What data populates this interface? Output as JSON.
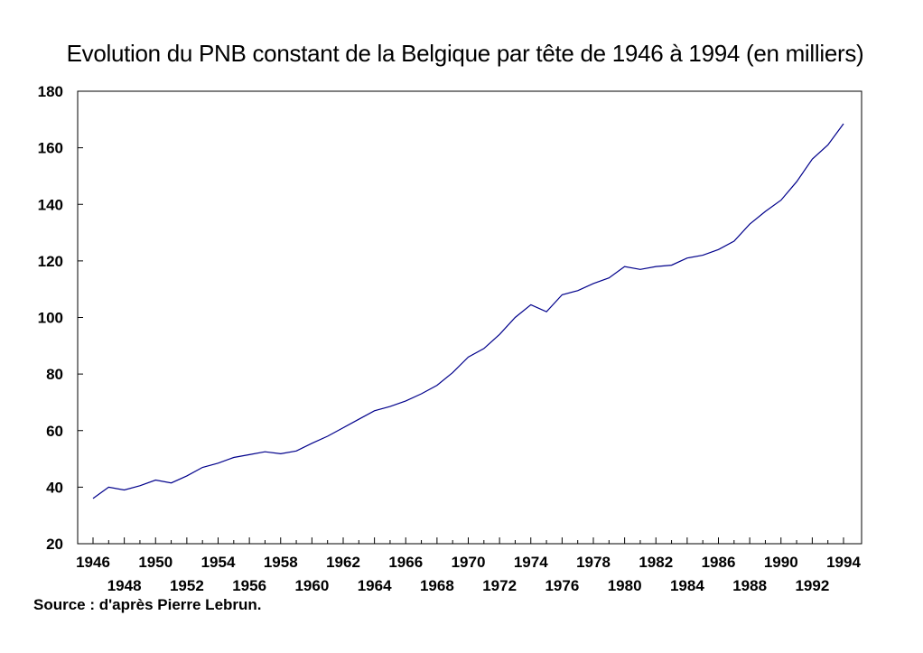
{
  "chart_data": {
    "type": "line",
    "title": "Evolution du PNB constant de la Belgique par tête de 1946 à 1994 (en milliers)",
    "source": "Source : d'après Pierre Lebrun.",
    "xlabel": "",
    "ylabel": "",
    "xlim": [
      1946,
      1994
    ],
    "ylim": [
      20,
      180
    ],
    "y_ticks": [
      "20",
      "40",
      "60",
      "80",
      "100",
      "120",
      "140",
      "160",
      "180"
    ],
    "x_ticks_row1": [
      "1946",
      "1950",
      "1954",
      "1958",
      "1962",
      "1966",
      "1970",
      "1974",
      "1978",
      "1982",
      "1986",
      "1990",
      "1994"
    ],
    "x_ticks_row2": [
      "1948",
      "1952",
      "1956",
      "1960",
      "1964",
      "1968",
      "1972",
      "1976",
      "1980",
      "1984",
      "1988",
      "1992"
    ],
    "grid": false,
    "line_color": "#00008b",
    "x": [
      1946,
      1947,
      1948,
      1949,
      1950,
      1951,
      1952,
      1953,
      1954,
      1955,
      1956,
      1957,
      1958,
      1959,
      1960,
      1961,
      1962,
      1963,
      1964,
      1965,
      1966,
      1967,
      1968,
      1969,
      1970,
      1971,
      1972,
      1973,
      1974,
      1975,
      1976,
      1977,
      1978,
      1979,
      1980,
      1981,
      1982,
      1983,
      1984,
      1985,
      1986,
      1987,
      1988,
      1989,
      1990,
      1991,
      1992,
      1993,
      1994
    ],
    "values": [
      36,
      40,
      39,
      40.5,
      42.5,
      41.5,
      44,
      47,
      48.5,
      50.5,
      51.5,
      52.5,
      51.8,
      52.8,
      55.5,
      58,
      61,
      64,
      67,
      68.5,
      70.5,
      73,
      76,
      80.5,
      86,
      89,
      94,
      100,
      104.5,
      102,
      108,
      109.5,
      112,
      114,
      118,
      117,
      118,
      118.5,
      121,
      122,
      124,
      127,
      133,
      137.5,
      141.5,
      148,
      156,
      161,
      168.5
    ]
  }
}
